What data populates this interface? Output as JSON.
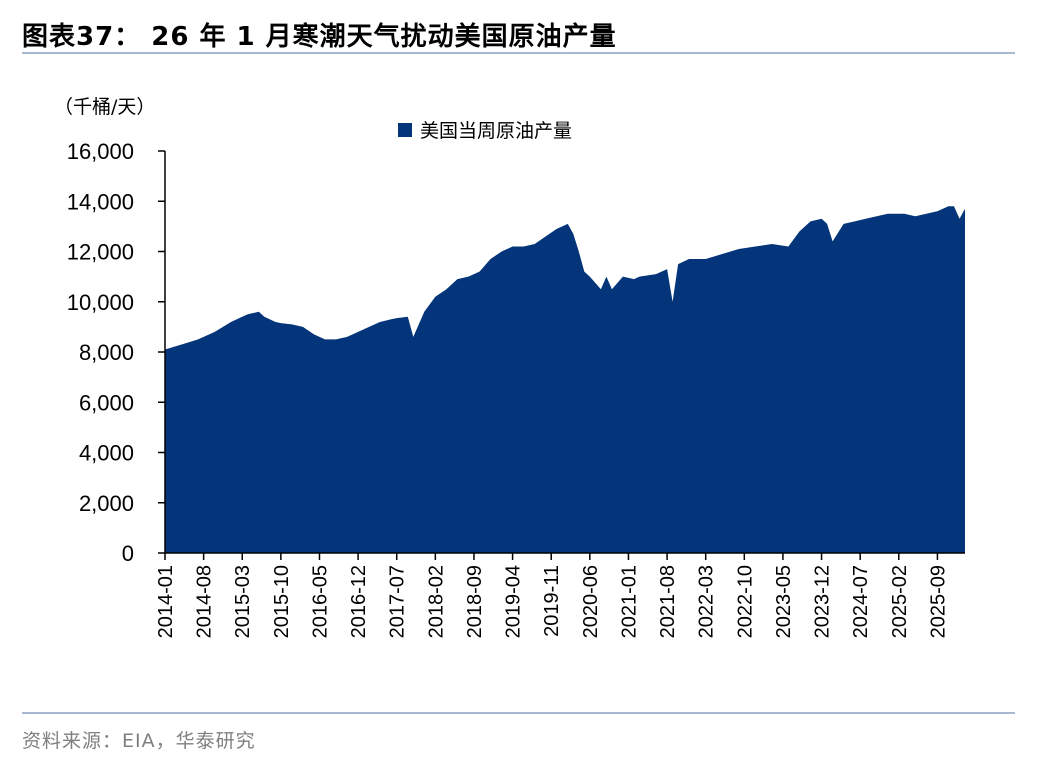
{
  "title": "图表37： 26 年 1 月寒潮天气扰动美国原油产量",
  "source": "资料来源：EIA，华泰研究",
  "colors": {
    "series": "#04357A",
    "rule": "#a9b8d1",
    "source_text": "#7f7f7f"
  },
  "chart_data": {
    "type": "area",
    "unit_label": "（千桶/天）",
    "ylim": [
      0,
      16000
    ],
    "yticks": [
      "0",
      "2,000",
      "4,000",
      "6,000",
      "8,000",
      "10,000",
      "12,000",
      "14,000",
      "16,000"
    ],
    "xticks": [
      "2014-01",
      "2014-08",
      "2015-03",
      "2015-10",
      "2016-05",
      "2016-12",
      "2017-07",
      "2018-02",
      "2018-09",
      "2019-04",
      "2019-11",
      "2020-06",
      "2021-01",
      "2021-08",
      "2022-03",
      "2022-10",
      "2023-05",
      "2023-12",
      "2024-07",
      "2025-02",
      "2025-09"
    ],
    "grid": false,
    "legend_position": "top-center",
    "series": [
      {
        "name": "美国当周原油产量",
        "x": [
          "2014-01",
          "2014-04",
          "2014-07",
          "2014-10",
          "2015-01",
          "2015-03",
          "2015-04",
          "2015-06",
          "2015-07",
          "2015-09",
          "2015-10",
          "2015-12",
          "2016-02",
          "2016-04",
          "2016-06",
          "2016-08",
          "2016-10",
          "2016-12",
          "2017-02",
          "2017-04",
          "2017-06",
          "2017-07",
          "2017-09",
          "2017-10",
          "2017-12",
          "2018-02",
          "2018-04",
          "2018-06",
          "2018-08",
          "2018-10",
          "2018-12",
          "2019-02",
          "2019-04",
          "2019-06",
          "2019-08",
          "2019-10",
          "2019-12",
          "2020-02",
          "2020-03",
          "2020-04",
          "2020-05",
          "2020-06",
          "2020-08",
          "2020-09",
          "2020-10",
          "2020-12",
          "2021-02",
          "2021-03",
          "2021-06",
          "2021-08",
          "2021-09",
          "2021-10",
          "2021-12",
          "2022-03",
          "2022-06",
          "2022-09",
          "2022-12",
          "2023-03",
          "2023-06",
          "2023-08",
          "2023-10",
          "2023-12",
          "2024-01",
          "2024-02",
          "2024-04",
          "2024-06",
          "2024-08",
          "2024-10",
          "2024-12",
          "2025-01",
          "2025-03",
          "2025-05",
          "2025-07",
          "2025-09",
          "2025-11",
          "2025-12",
          "2026-01",
          "2026-02"
        ],
        "values": [
          8100,
          8300,
          8500,
          8800,
          9200,
          9400,
          9500,
          9600,
          9400,
          9200,
          9150,
          9100,
          9000,
          8700,
          8500,
          8500,
          8600,
          8800,
          9000,
          9200,
          9300,
          9350,
          9400,
          8600,
          9600,
          10200,
          10500,
          10900,
          11000,
          11200,
          11700,
          12000,
          12200,
          12200,
          12300,
          12600,
          12900,
          13100,
          12700,
          12000,
          11200,
          11000,
          10500,
          11000,
          10500,
          11000,
          10900,
          11000,
          11100,
          11300,
          10000,
          11500,
          11700,
          11700,
          11900,
          12100,
          12200,
          12300,
          12200,
          12800,
          13200,
          13300,
          13100,
          12400,
          13100,
          13200,
          13300,
          13400,
          13500,
          13500,
          13500,
          13400,
          13500,
          13600,
          13800,
          13800,
          13300,
          13700
        ]
      }
    ]
  }
}
